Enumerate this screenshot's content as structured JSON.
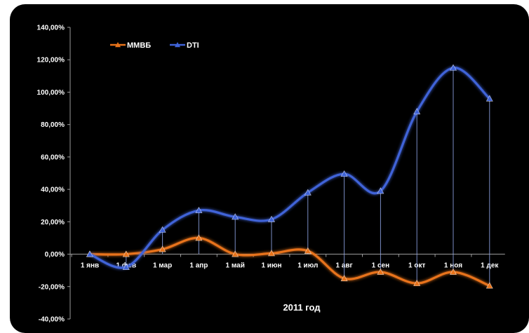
{
  "chart_data": {
    "type": "line",
    "title": "",
    "xlabel": "2011 год",
    "ylabel": "",
    "categories": [
      "1 янв",
      "1 фев",
      "1 мар",
      "1 апр",
      "1 май",
      "1 июн",
      "1 июл",
      "1 авг",
      "1 сен",
      "1 окт",
      "1 ноя",
      "1 дек"
    ],
    "y_ticks": [
      "-40,00%",
      "-20,00%",
      "0,00%",
      "20,00%",
      "40,00%",
      "60,00%",
      "80,00%",
      "100,00%",
      "120,00%",
      "140,00%"
    ],
    "ylim": [
      -40,
      140
    ],
    "grid": false,
    "legend_position": "top-left",
    "drop_lines": true,
    "smooth": true,
    "series": [
      {
        "name": "ММВБ",
        "color": "#E8731A",
        "values": [
          0,
          0,
          3,
          10,
          0,
          0.5,
          2,
          -15,
          -11,
          -18,
          -11,
          -19.5
        ]
      },
      {
        "name": "DTI",
        "color": "#3F63D8",
        "values": [
          0,
          -8,
          15,
          27,
          23,
          21.5,
          38,
          49.5,
          39,
          88,
          115,
          96
        ]
      }
    ],
    "colors": {
      "background": "#000000",
      "axis": "#9a9a9a",
      "drop_line": "#8fa6e8",
      "text": "#ffffff"
    }
  }
}
